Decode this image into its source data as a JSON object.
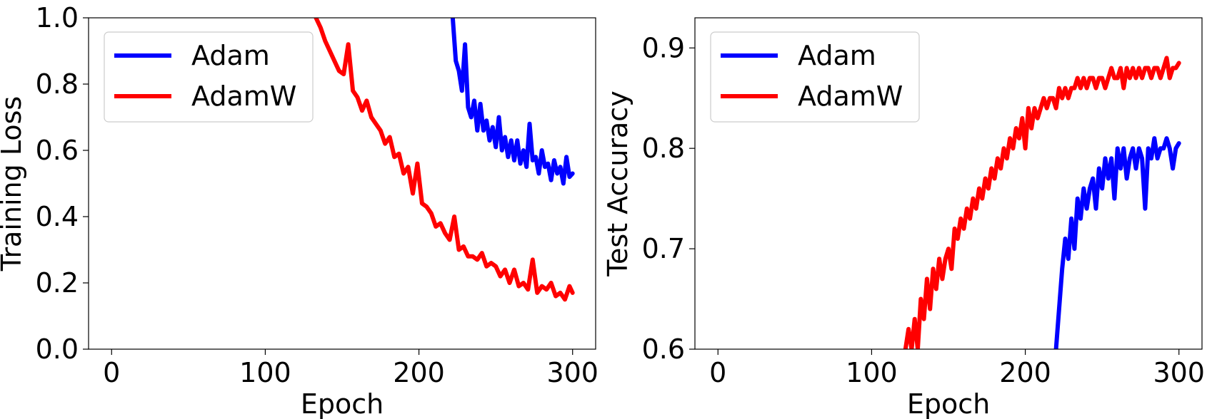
{
  "chart_data": [
    {
      "type": "line",
      "xlabel": "Epoch",
      "ylabel": "Training Loss",
      "xlim": [
        -15,
        315
      ],
      "ylim": [
        0.0,
        1.0
      ],
      "xticks": [
        0,
        100,
        200,
        300
      ],
      "yticks": [
        0.0,
        0.2,
        0.4,
        0.6,
        0.8,
        1.0
      ],
      "xtick_labels": [
        "0",
        "100",
        "200",
        "300"
      ],
      "ytick_labels": [
        "0.0",
        "0.2",
        "0.4",
        "0.6",
        "0.8",
        "1.0"
      ],
      "legend_position": "top-left",
      "grid": false,
      "series": [
        {
          "name": "Adam",
          "color": "#0000ff",
          "x": [
            222,
            224,
            226,
            228,
            230,
            232,
            234,
            236,
            238,
            240,
            242,
            244,
            246,
            248,
            250,
            252,
            254,
            256,
            258,
            260,
            262,
            264,
            266,
            268,
            270,
            272,
            274,
            276,
            278,
            280,
            282,
            284,
            286,
            288,
            290,
            292,
            294,
            296,
            298,
            300
          ],
          "y": [
            1.0,
            0.87,
            0.84,
            0.78,
            0.92,
            0.73,
            0.7,
            0.75,
            0.66,
            0.74,
            0.66,
            0.69,
            0.63,
            0.67,
            0.61,
            0.7,
            0.6,
            0.64,
            0.58,
            0.63,
            0.57,
            0.63,
            0.56,
            0.6,
            0.55,
            0.68,
            0.57,
            0.58,
            0.53,
            0.6,
            0.55,
            0.56,
            0.51,
            0.57,
            0.53,
            0.55,
            0.5,
            0.58,
            0.52,
            0.53
          ]
        },
        {
          "name": "AdamW",
          "color": "#ff0000",
          "x": [
            133,
            136,
            139,
            142,
            145,
            148,
            151,
            154,
            157,
            160,
            163,
            166,
            169,
            172,
            175,
            178,
            181,
            184,
            187,
            190,
            193,
            196,
            199,
            202,
            205,
            208,
            211,
            214,
            217,
            220,
            223,
            226,
            229,
            232,
            235,
            238,
            241,
            244,
            247,
            250,
            253,
            256,
            259,
            262,
            265,
            268,
            271,
            274,
            277,
            280,
            283,
            286,
            289,
            292,
            295,
            298,
            300
          ],
          "y": [
            1.0,
            0.97,
            0.93,
            0.9,
            0.87,
            0.84,
            0.83,
            0.92,
            0.78,
            0.76,
            0.72,
            0.75,
            0.7,
            0.68,
            0.66,
            0.62,
            0.64,
            0.58,
            0.59,
            0.53,
            0.55,
            0.47,
            0.56,
            0.44,
            0.43,
            0.41,
            0.37,
            0.38,
            0.35,
            0.33,
            0.4,
            0.3,
            0.31,
            0.28,
            0.28,
            0.27,
            0.29,
            0.25,
            0.26,
            0.25,
            0.22,
            0.24,
            0.2,
            0.24,
            0.19,
            0.2,
            0.18,
            0.27,
            0.17,
            0.19,
            0.18,
            0.2,
            0.16,
            0.17,
            0.15,
            0.19,
            0.17
          ]
        }
      ]
    },
    {
      "type": "line",
      "xlabel": "Epoch",
      "ylabel": "Test Accuracy",
      "xlim": [
        -15,
        315
      ],
      "ylim": [
        0.6,
        0.93
      ],
      "xticks": [
        0,
        100,
        200,
        300
      ],
      "yticks": [
        0.6,
        0.7,
        0.8,
        0.9
      ],
      "xtick_labels": [
        "0",
        "100",
        "200",
        "300"
      ],
      "ytick_labels": [
        "0.6",
        "0.7",
        "0.8",
        "0.9"
      ],
      "legend_position": "top-left",
      "grid": false,
      "series": [
        {
          "name": "Adam",
          "color": "#0000ff",
          "x": [
            220,
            222,
            224,
            226,
            228,
            230,
            232,
            234,
            236,
            238,
            240,
            242,
            244,
            246,
            248,
            250,
            252,
            254,
            256,
            258,
            260,
            262,
            264,
            266,
            268,
            270,
            272,
            274,
            276,
            278,
            280,
            282,
            284,
            286,
            288,
            290,
            292,
            294,
            296,
            298,
            300
          ],
          "y": [
            0.6,
            0.64,
            0.68,
            0.71,
            0.69,
            0.73,
            0.7,
            0.75,
            0.73,
            0.76,
            0.74,
            0.76,
            0.77,
            0.74,
            0.78,
            0.76,
            0.79,
            0.77,
            0.79,
            0.75,
            0.8,
            0.78,
            0.8,
            0.77,
            0.79,
            0.8,
            0.78,
            0.8,
            0.79,
            0.74,
            0.8,
            0.79,
            0.81,
            0.79,
            0.8,
            0.8,
            0.81,
            0.8,
            0.78,
            0.8,
            0.805
          ]
        },
        {
          "name": "AdamW",
          "color": "#ff0000",
          "x": [
            122,
            124,
            126,
            128,
            130,
            132,
            134,
            136,
            138,
            140,
            142,
            144,
            146,
            148,
            150,
            152,
            154,
            156,
            158,
            160,
            162,
            164,
            166,
            168,
            170,
            172,
            174,
            176,
            178,
            180,
            182,
            184,
            186,
            188,
            190,
            192,
            194,
            196,
            198,
            200,
            202,
            204,
            206,
            208,
            210,
            212,
            214,
            216,
            218,
            220,
            222,
            224,
            226,
            228,
            230,
            232,
            234,
            236,
            238,
            240,
            242,
            244,
            246,
            248,
            250,
            252,
            254,
            256,
            258,
            260,
            262,
            264,
            266,
            268,
            270,
            272,
            274,
            276,
            278,
            280,
            282,
            284,
            286,
            288,
            290,
            292,
            294,
            296,
            298,
            300
          ],
          "y": [
            0.6,
            0.62,
            0.6,
            0.63,
            0.6,
            0.65,
            0.63,
            0.67,
            0.64,
            0.68,
            0.66,
            0.69,
            0.67,
            0.69,
            0.7,
            0.68,
            0.72,
            0.71,
            0.73,
            0.72,
            0.74,
            0.73,
            0.75,
            0.74,
            0.76,
            0.75,
            0.77,
            0.76,
            0.78,
            0.77,
            0.79,
            0.78,
            0.8,
            0.79,
            0.81,
            0.8,
            0.82,
            0.81,
            0.83,
            0.8,
            0.84,
            0.82,
            0.84,
            0.83,
            0.84,
            0.85,
            0.84,
            0.85,
            0.85,
            0.84,
            0.86,
            0.85,
            0.86,
            0.85,
            0.86,
            0.86,
            0.87,
            0.86,
            0.87,
            0.86,
            0.87,
            0.87,
            0.86,
            0.87,
            0.87,
            0.86,
            0.87,
            0.88,
            0.87,
            0.87,
            0.88,
            0.86,
            0.88,
            0.87,
            0.88,
            0.87,
            0.88,
            0.87,
            0.88,
            0.88,
            0.87,
            0.88,
            0.88,
            0.87,
            0.88,
            0.89,
            0.87,
            0.88,
            0.88,
            0.885
          ]
        }
      ]
    }
  ]
}
